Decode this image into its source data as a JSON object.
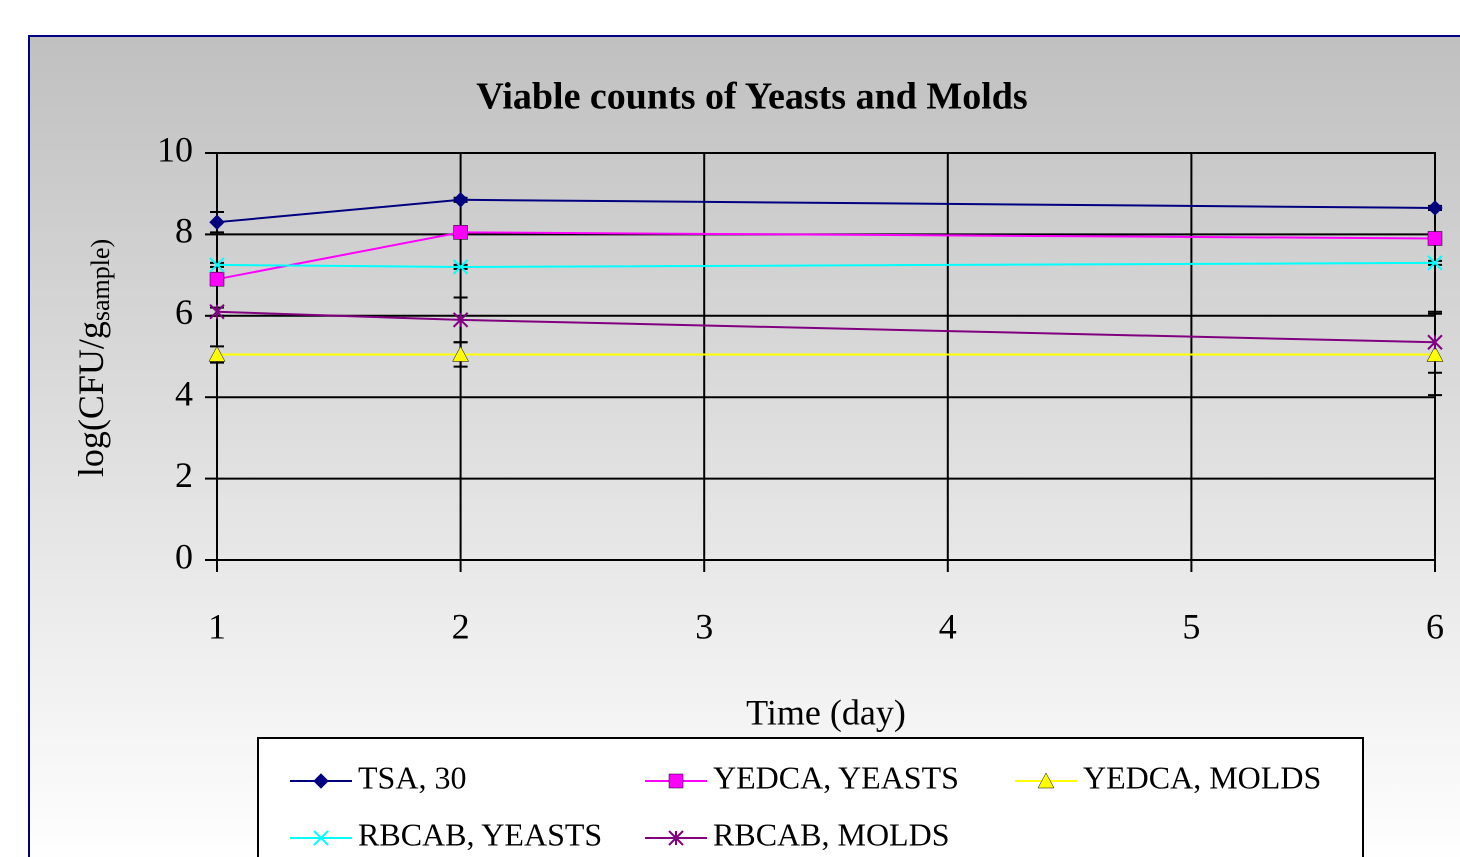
{
  "chart_data": {
    "type": "line",
    "title": "Viable counts of Yeasts and Molds",
    "xlabel": "Time (day)",
    "ylabel": "log(CFU/g",
    "ylabel_sub": "sample)",
    "x": [
      1,
      2,
      6
    ],
    "xlim": [
      1,
      6
    ],
    "xticks": [
      1,
      2,
      3,
      4,
      5,
      6
    ],
    "ylim": [
      0,
      10
    ],
    "yticks": [
      0,
      2,
      4,
      6,
      8,
      10
    ],
    "grid": true,
    "legend": "bottom",
    "series": [
      {
        "name": "TSA, 30",
        "color": "#000080",
        "marker": "diamond",
        "values": [
          8.3,
          8.85,
          8.65
        ],
        "errors": [
          0.25,
          0.05,
          0.05
        ]
      },
      {
        "name": "YEDCA, YEASTS",
        "color": "#ff00ff",
        "marker": "square",
        "values": [
          6.9,
          8.05,
          7.9
        ],
        "errors": [
          0.1,
          0.05,
          0.05
        ]
      },
      {
        "name": "YEDCA, MOLDS",
        "color": "#ffff00",
        "marker": "triangle",
        "values": [
          5.05,
          5.05,
          5.05
        ],
        "errors": [
          0.2,
          0.3,
          1.0
        ]
      },
      {
        "name": "RBCAB, YEASTS",
        "color": "#00ffff",
        "marker": "x",
        "values": [
          7.25,
          7.2,
          7.3
        ],
        "errors": [
          0.05,
          0.05,
          0.05
        ]
      },
      {
        "name": "RBCAB, MOLDS",
        "color": "#800080",
        "marker": "asterisk",
        "values": [
          6.1,
          5.9,
          5.35
        ],
        "errors": [
          0.1,
          0.55,
          0.75
        ]
      }
    ]
  }
}
